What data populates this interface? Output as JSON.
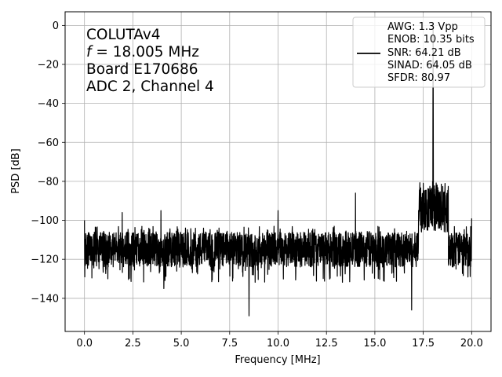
{
  "chart_data": {
    "type": "line",
    "title": "",
    "xlabel": "Frequency [MHz]",
    "ylabel": "PSD [dB]",
    "xlim": [
      -1.0,
      21.0
    ],
    "ylim": [
      -157,
      7
    ],
    "xticks": [
      0.0,
      2.5,
      5.0,
      7.5,
      10.0,
      12.5,
      15.0,
      17.5,
      20.0
    ],
    "xtick_labels": [
      "0.0",
      "2.5",
      "5.0",
      "7.5",
      "10.0",
      "12.5",
      "15.0",
      "17.5",
      "20.0"
    ],
    "yticks": [
      0,
      -20,
      -40,
      -60,
      -80,
      -100,
      -120,
      -140
    ],
    "ytick_labels": [
      "0",
      "−20",
      "−40",
      "−60",
      "−80",
      "−100",
      "−120",
      "−140"
    ],
    "grid": true,
    "legend_position": "top-right",
    "annotation_lines": [
      "COLUTAv4",
      "= 18.005 MHz",
      "Board E170686",
      "ADC 2, Channel 4"
    ],
    "annotation_italic_prefix": "f",
    "legend_lines": [
      "AWG: 1.3 Vpp",
      "ENOB: 10.35 bits",
      "SNR: 64.21 dB",
      "SINAD: 64.05 dB",
      "SFDR: 80.97"
    ],
    "series": [
      {
        "color": "#000000",
        "noise_floor_db": -115,
        "noise_band_db": [
          -124,
          -103
        ],
        "features": [
          {
            "x": 0.0,
            "y": -100,
            "kind": "dc-edge"
          },
          {
            "x": 0.02,
            "y": -129,
            "kind": "dip"
          },
          {
            "x": 1.95,
            "y": -96,
            "kind": "spur"
          },
          {
            "x": 3.95,
            "y": -95,
            "kind": "spur"
          },
          {
            "x": 4.1,
            "y": -135,
            "kind": "dip"
          },
          {
            "x": 8.5,
            "y": -149,
            "kind": "dip"
          },
          {
            "x": 10.0,
            "y": -95,
            "kind": "spur"
          },
          {
            "x": 14.0,
            "y": -86,
            "kind": "spur"
          },
          {
            "x": 16.9,
            "y": -146,
            "kind": "dip"
          },
          {
            "x": 17.5,
            "y": -81,
            "kind": "band"
          },
          {
            "x": 18.005,
            "y": 0,
            "kind": "fundamental"
          },
          {
            "x": 20.0,
            "y": -99,
            "kind": "edge"
          }
        ]
      }
    ]
  }
}
